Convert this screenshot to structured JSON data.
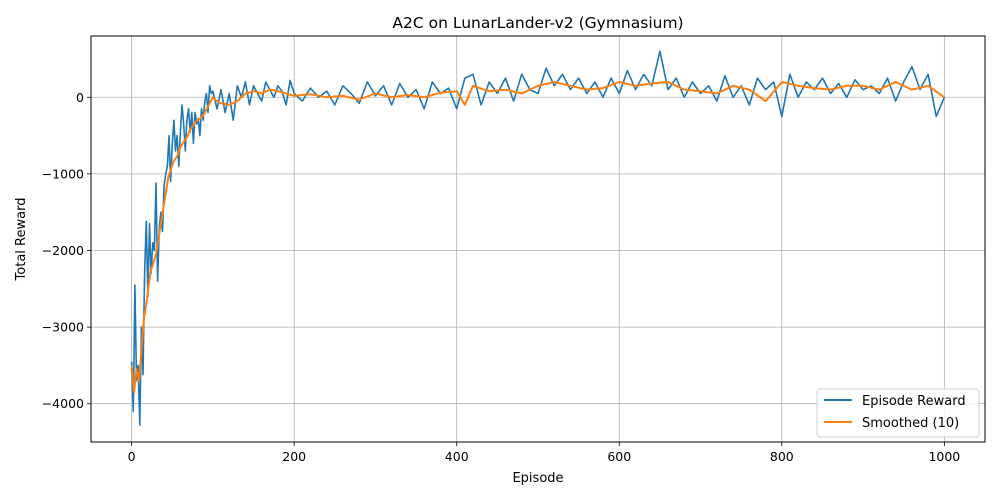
{
  "chart_data": {
    "type": "line",
    "title": "A2C on LunarLander-v2 (Gymnasium)",
    "xlabel": "Episode",
    "ylabel": "Total Reward",
    "xlim": [
      -50,
      1050
    ],
    "ylim": [
      -4500,
      800
    ],
    "xticks": [
      0,
      200,
      400,
      600,
      800,
      1000
    ],
    "yticks": [
      -4000,
      -3000,
      -2000,
      -1000,
      0
    ],
    "grid": true,
    "legend_position": "bottom-right",
    "series": [
      {
        "name": "Episode Reward",
        "color": "#1f77b4",
        "x": [
          0,
          2,
          4,
          6,
          8,
          10,
          12,
          14,
          16,
          18,
          20,
          22,
          24,
          26,
          28,
          30,
          32,
          34,
          36,
          38,
          40,
          42,
          44,
          46,
          48,
          50,
          52,
          54,
          56,
          58,
          60,
          62,
          64,
          66,
          68,
          70,
          72,
          74,
          76,
          78,
          80,
          82,
          84,
          86,
          88,
          90,
          92,
          94,
          96,
          98,
          100,
          105,
          110,
          115,
          120,
          125,
          130,
          135,
          140,
          145,
          150,
          155,
          160,
          165,
          170,
          175,
          180,
          185,
          190,
          195,
          200,
          210,
          220,
          230,
          240,
          250,
          260,
          270,
          280,
          290,
          300,
          310,
          320,
          330,
          340,
          350,
          360,
          370,
          380,
          390,
          400,
          410,
          420,
          430,
          440,
          450,
          460,
          470,
          480,
          490,
          500,
          510,
          520,
          530,
          540,
          550,
          560,
          570,
          580,
          590,
          600,
          610,
          620,
          630,
          640,
          650,
          660,
          670,
          680,
          690,
          700,
          710,
          720,
          730,
          740,
          750,
          760,
          770,
          780,
          790,
          800,
          810,
          820,
          830,
          840,
          850,
          860,
          870,
          880,
          890,
          900,
          910,
          920,
          930,
          940,
          950,
          960,
          970,
          980,
          990,
          1000
        ],
        "y": [
          -3450,
          -4100,
          -2450,
          -3700,
          -3500,
          -4280,
          -3000,
          -3620,
          -2300,
          -1620,
          -2600,
          -1650,
          -2300,
          -1900,
          -2000,
          -1120,
          -2400,
          -1700,
          -1500,
          -1750,
          -1150,
          -1000,
          -900,
          -500,
          -1100,
          -600,
          -300,
          -700,
          -500,
          -900,
          -450,
          -100,
          -350,
          -700,
          -300,
          -150,
          -450,
          -200,
          -600,
          -200,
          -350,
          -280,
          -500,
          -150,
          -300,
          -50,
          50,
          -200,
          150,
          50,
          80,
          -150,
          100,
          -200,
          50,
          -300,
          150,
          0,
          200,
          -100,
          150,
          50,
          -50,
          200,
          100,
          0,
          150,
          80,
          -100,
          220,
          50,
          -50,
          120,
          0,
          80,
          -100,
          150,
          50,
          -80,
          200,
          20,
          150,
          -100,
          180,
          0,
          100,
          -150,
          200,
          50,
          120,
          -150,
          250,
          300,
          -100,
          200,
          50,
          250,
          -50,
          300,
          100,
          50,
          380,
          150,
          300,
          100,
          250,
          50,
          200,
          0,
          250,
          50,
          350,
          100,
          300,
          150,
          600,
          100,
          250,
          0,
          200,
          50,
          150,
          -50,
          280,
          0,
          150,
          -100,
          250,
          100,
          200,
          -250,
          300,
          0,
          200,
          100,
          250,
          50,
          180,
          0,
          230,
          100,
          150,
          50,
          250,
          -50,
          200,
          400,
          100,
          300,
          -250,
          0
        ]
      },
      {
        "name": "Smoothed (10)",
        "color": "#ff7f0e",
        "x": [
          0,
          3,
          6,
          9,
          12,
          15,
          18,
          21,
          24,
          27,
          30,
          33,
          36,
          39,
          42,
          45,
          48,
          51,
          54,
          57,
          60,
          63,
          66,
          69,
          72,
          75,
          78,
          81,
          84,
          87,
          90,
          95,
          100,
          105,
          110,
          120,
          130,
          140,
          150,
          160,
          170,
          180,
          190,
          200,
          220,
          240,
          260,
          280,
          300,
          320,
          340,
          360,
          380,
          400,
          410,
          420,
          440,
          460,
          480,
          500,
          520,
          540,
          560,
          580,
          600,
          620,
          640,
          660,
          680,
          700,
          720,
          740,
          760,
          780,
          800,
          820,
          840,
          860,
          880,
          900,
          920,
          940,
          960,
          980,
          1000
        ],
        "y": [
          -3500,
          -3850,
          -3550,
          -3700,
          -3300,
          -2900,
          -2700,
          -2450,
          -2250,
          -2150,
          -2050,
          -1850,
          -1650,
          -1450,
          -1250,
          -1050,
          -950,
          -850,
          -800,
          -750,
          -650,
          -600,
          -550,
          -500,
          -420,
          -380,
          -330,
          -300,
          -280,
          -250,
          -200,
          -100,
          0,
          -50,
          -80,
          -100,
          -50,
          50,
          80,
          50,
          100,
          80,
          50,
          20,
          40,
          0,
          20,
          -30,
          50,
          0,
          30,
          0,
          60,
          80,
          -100,
          150,
          80,
          100,
          50,
          150,
          200,
          150,
          100,
          120,
          200,
          150,
          180,
          200,
          100,
          80,
          50,
          150,
          100,
          -50,
          200,
          150,
          120,
          100,
          150,
          150,
          100,
          200,
          100,
          150,
          0
        ]
      }
    ]
  }
}
